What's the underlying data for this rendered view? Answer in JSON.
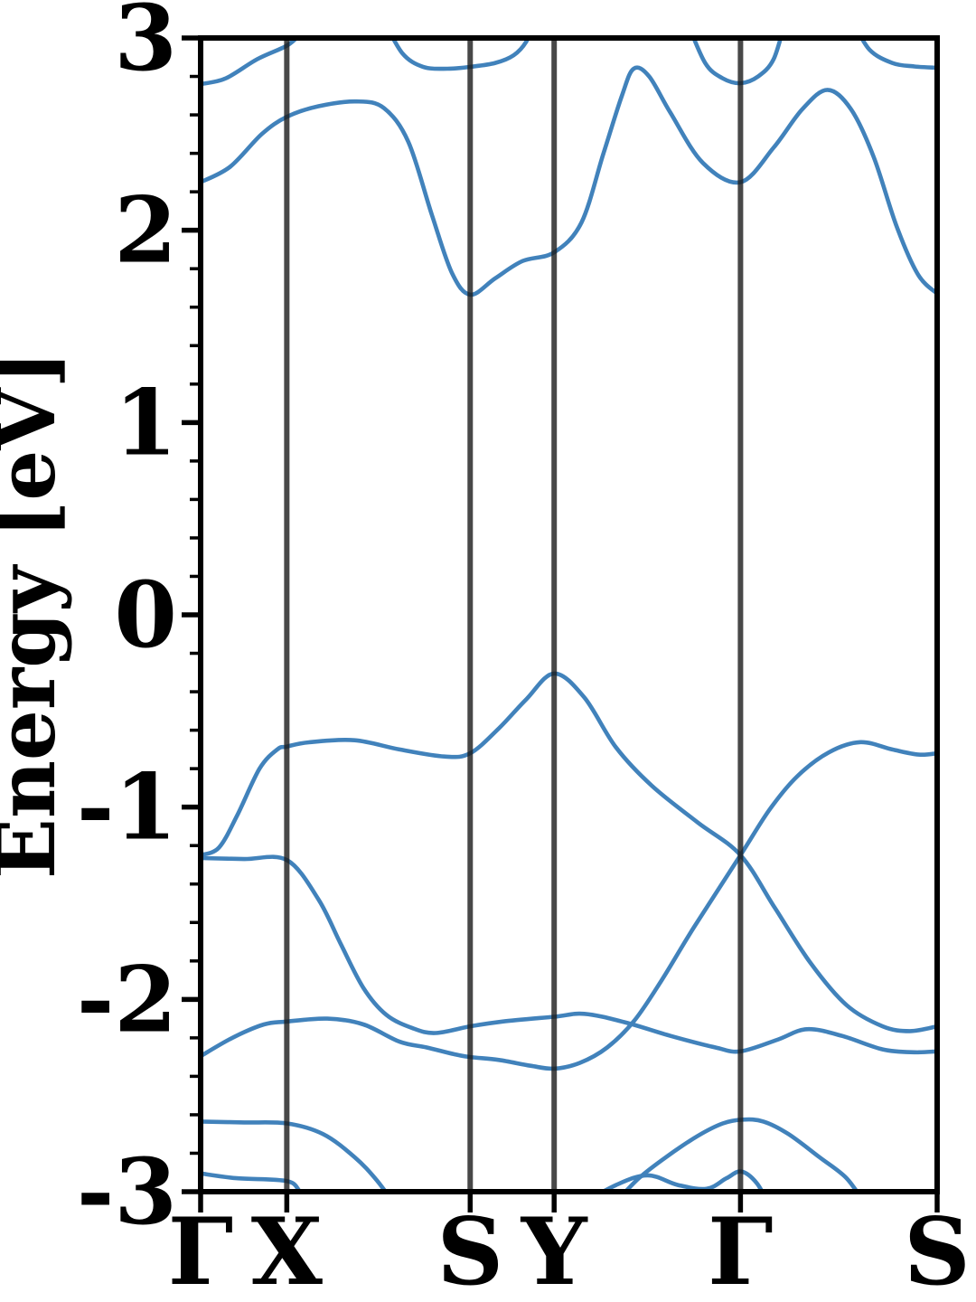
{
  "page": {
    "background": "#ffffff"
  },
  "chart_data": {
    "type": "line",
    "title": "",
    "subtitle": "",
    "xlabel": "",
    "ylabel": "Energy [eV]",
    "ylim": [
      -3,
      3
    ],
    "yticks_major": [
      3,
      2,
      1,
      0,
      -1,
      -2,
      -3
    ],
    "ytick_minor_step": 0.2,
    "grid": false,
    "legend": "none",
    "kpath": [
      {
        "label": "Γ",
        "pos": 0.0
      },
      {
        "label": "X",
        "pos": 0.117
      },
      {
        "label": "S",
        "pos": 0.366
      },
      {
        "label": "Y",
        "pos": 0.48
      },
      {
        "label": "Γ",
        "pos": 0.733
      },
      {
        "label": "S",
        "pos": 1.0
      }
    ],
    "colors": {
      "band": "#4182bb",
      "kpoint_line": "#1a1a1a",
      "kpoint_line_opacity": 0.8,
      "spine": "#000000",
      "text": "#000000"
    },
    "bands": [
      {
        "name": "band-1",
        "segments": [
          [
            [
              0.0,
              -2.905
            ],
            [
              0.049,
              -2.93
            ],
            [
              0.117,
              -2.945
            ],
            [
              0.135,
              -3.0
            ],
            [
              0.15,
              -3.07
            ]
          ],
          [
            [
              0.515,
              -3.07
            ],
            [
              0.564,
              -2.965
            ],
            [
              0.607,
              -2.915
            ],
            [
              0.648,
              -2.965
            ],
            [
              0.687,
              -2.985
            ],
            [
              0.714,
              -2.93
            ],
            [
              0.734,
              -2.895
            ],
            [
              0.755,
              -2.955
            ],
            [
              0.772,
              -3.07
            ]
          ]
        ]
      },
      {
        "name": "band-2",
        "segments": [
          [
            [
              0.0,
              -2.635
            ],
            [
              0.059,
              -2.64
            ],
            [
              0.117,
              -2.645
            ],
            [
              0.166,
              -2.7
            ],
            [
              0.209,
              -2.82
            ],
            [
              0.239,
              -2.94
            ],
            [
              0.264,
              -3.07
            ]
          ],
          [
            [
              0.56,
              -3.07
            ],
            [
              0.595,
              -2.93
            ],
            [
              0.632,
              -2.82
            ],
            [
              0.675,
              -2.71
            ],
            [
              0.709,
              -2.645
            ],
            [
              0.736,
              -2.625
            ],
            [
              0.764,
              -2.635
            ],
            [
              0.798,
              -2.7
            ],
            [
              0.84,
              -2.82
            ],
            [
              0.877,
              -2.93
            ],
            [
              0.903,
              -3.07
            ]
          ]
        ]
      },
      {
        "name": "band-3",
        "segments": [
          [
            [
              0.0,
              -2.295
            ],
            [
              0.043,
              -2.2
            ],
            [
              0.086,
              -2.13
            ],
            [
              0.117,
              -2.115
            ],
            [
              0.172,
              -2.1
            ],
            [
              0.221,
              -2.13
            ],
            [
              0.27,
              -2.22
            ],
            [
              0.307,
              -2.25
            ],
            [
              0.344,
              -2.285
            ],
            [
              0.366,
              -2.3
            ],
            [
              0.405,
              -2.315
            ],
            [
              0.448,
              -2.345
            ],
            [
              0.48,
              -2.36
            ],
            [
              0.515,
              -2.33
            ],
            [
              0.552,
              -2.25
            ],
            [
              0.589,
              -2.11
            ],
            [
              0.626,
              -1.9
            ],
            [
              0.669,
              -1.63
            ],
            [
              0.733,
              -1.25
            ],
            [
              0.773,
              -1.01
            ],
            [
              0.81,
              -0.84
            ],
            [
              0.853,
              -0.715
            ],
            [
              0.896,
              -0.662
            ],
            [
              0.939,
              -0.7
            ],
            [
              0.975,
              -0.727
            ],
            [
              1.0,
              -0.72
            ]
          ]
        ]
      },
      {
        "name": "band-4",
        "segments": [
          [
            [
              0.0,
              -1.25
            ],
            [
              0.025,
              -1.21
            ],
            [
              0.05,
              -1.04
            ],
            [
              0.08,
              -0.8
            ],
            [
              0.104,
              -0.7
            ],
            [
              0.117,
              -0.685
            ],
            [
              0.147,
              -0.663
            ],
            [
              0.209,
              -0.652
            ],
            [
              0.27,
              -0.7
            ],
            [
              0.331,
              -0.737
            ],
            [
              0.366,
              -0.72
            ],
            [
              0.405,
              -0.59
            ],
            [
              0.442,
              -0.44
            ],
            [
              0.48,
              -0.305
            ],
            [
              0.521,
              -0.43
            ],
            [
              0.564,
              -0.69
            ],
            [
              0.613,
              -0.89
            ],
            [
              0.675,
              -1.08
            ],
            [
              0.733,
              -1.25
            ],
            [
              0.779,
              -1.52
            ],
            [
              0.828,
              -1.81
            ],
            [
              0.877,
              -2.03
            ],
            [
              0.926,
              -2.14
            ],
            [
              0.963,
              -2.165
            ],
            [
              1.0,
              -2.14
            ]
          ]
        ]
      },
      {
        "name": "band-5",
        "segments": [
          [
            [
              0.0,
              -1.265
            ],
            [
              0.059,
              -1.27
            ],
            [
              0.117,
              -1.275
            ],
            [
              0.16,
              -1.48
            ],
            [
              0.19,
              -1.71
            ],
            [
              0.221,
              -1.94
            ],
            [
              0.252,
              -2.08
            ],
            [
              0.288,
              -2.15
            ],
            [
              0.319,
              -2.175
            ],
            [
              0.366,
              -2.14
            ],
            [
              0.41,
              -2.115
            ],
            [
              0.48,
              -2.09
            ],
            [
              0.521,
              -2.075
            ],
            [
              0.577,
              -2.12
            ],
            [
              0.638,
              -2.19
            ],
            [
              0.699,
              -2.25
            ],
            [
              0.733,
              -2.27
            ],
            [
              0.783,
              -2.21
            ],
            [
              0.823,
              -2.155
            ],
            [
              0.871,
              -2.19
            ],
            [
              0.926,
              -2.26
            ],
            [
              0.969,
              -2.275
            ],
            [
              1.0,
              -2.27
            ]
          ]
        ]
      },
      {
        "name": "band-6",
        "segments": [
          [
            [
              0.0,
              2.25
            ],
            [
              0.04,
              2.33
            ],
            [
              0.083,
              2.5
            ],
            [
              0.117,
              2.59
            ],
            [
              0.16,
              2.645
            ],
            [
              0.212,
              2.67
            ],
            [
              0.249,
              2.635
            ],
            [
              0.282,
              2.46
            ],
            [
              0.314,
              2.08
            ],
            [
              0.341,
              1.78
            ],
            [
              0.366,
              1.665
            ],
            [
              0.4,
              1.75
            ],
            [
              0.437,
              1.84
            ],
            [
              0.48,
              1.885
            ],
            [
              0.517,
              2.04
            ],
            [
              0.547,
              2.4
            ],
            [
              0.572,
              2.7
            ],
            [
              0.588,
              2.84
            ],
            [
              0.609,
              2.8
            ],
            [
              0.638,
              2.61
            ],
            [
              0.682,
              2.35
            ],
            [
              0.733,
              2.25
            ],
            [
              0.778,
              2.43
            ],
            [
              0.817,
              2.63
            ],
            [
              0.851,
              2.73
            ],
            [
              0.883,
              2.63
            ],
            [
              0.914,
              2.38
            ],
            [
              0.945,
              2.02
            ],
            [
              0.974,
              1.77
            ],
            [
              1.0,
              1.67
            ]
          ]
        ]
      },
      {
        "name": "band-7",
        "segments": [
          [
            [
              0.0,
              2.76
            ],
            [
              0.034,
              2.79
            ],
            [
              0.077,
              2.89
            ],
            [
              0.117,
              2.96
            ],
            [
              0.135,
              3.02
            ],
            [
              0.151,
              3.09
            ]
          ],
          [
            [
              0.249,
              3.09
            ],
            [
              0.274,
              2.92
            ],
            [
              0.302,
              2.85
            ],
            [
              0.335,
              2.84
            ],
            [
              0.366,
              2.85
            ],
            [
              0.4,
              2.87
            ],
            [
              0.425,
              2.91
            ],
            [
              0.442,
              2.98
            ],
            [
              0.454,
              3.09
            ]
          ],
          [
            [
              0.66,
              3.09
            ],
            [
              0.685,
              2.87
            ],
            [
              0.709,
              2.79
            ],
            [
              0.733,
              2.765
            ],
            [
              0.757,
              2.8
            ],
            [
              0.778,
              2.89
            ],
            [
              0.794,
              3.09
            ]
          ],
          [
            [
              0.885,
              3.09
            ],
            [
              0.908,
              2.94
            ],
            [
              0.939,
              2.87
            ],
            [
              0.969,
              2.852
            ],
            [
              1.0,
              2.845
            ]
          ]
        ]
      }
    ]
  }
}
